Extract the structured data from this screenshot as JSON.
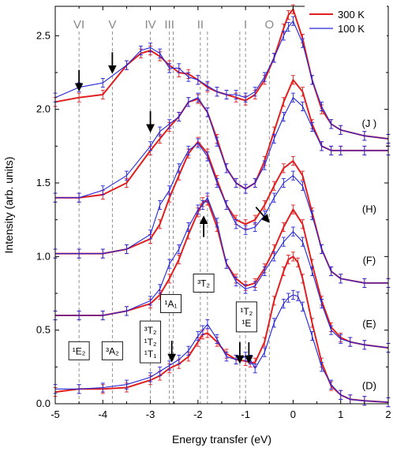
{
  "chart_data": {
    "type": "line",
    "xlabel": "Energy transfer (eV)",
    "ylabel": "Intensity (arb. units)",
    "xlim": [
      -5,
      2
    ],
    "ylim": [
      0,
      2.7
    ],
    "xticks": [
      "-5",
      "-4",
      "-3",
      "-2",
      "-1",
      "0",
      "1",
      "2"
    ],
    "yticks": [
      "0.0",
      "0.5",
      "1.0",
      "1.5",
      "2.0",
      "2.5"
    ],
    "grid": false,
    "legend": {
      "position": "top-right",
      "entries": [
        {
          "label": "300 K",
          "color": "#e02020"
        },
        {
          "label": "100 K",
          "color": "#2424d8"
        }
      ]
    },
    "vlines": [
      {
        "label": "VI",
        "x": -4.5
      },
      {
        "label": "V",
        "x": -3.8
      },
      {
        "label": "IV",
        "x": -3.0
      },
      {
        "label": "III",
        "x": -2.6
      },
      {
        "label": "II",
        "x": -1.95
      },
      {
        "label": "I",
        "x": -1.0
      },
      {
        "label": "O",
        "x": -0.5
      }
    ],
    "extra_vlines_x": [
      -2.52,
      -1.8,
      -1.12
    ],
    "annotations": [
      {
        "text": "(J )",
        "x": 1.6,
        "y": 1.88
      },
      {
        "text": "(H)",
        "x": 1.6,
        "y": 1.3
      },
      {
        "text": "(F)",
        "x": 1.6,
        "y": 0.95
      },
      {
        "text": "(E)",
        "x": 1.6,
        "y": 0.52
      },
      {
        "text": "(D)",
        "x": 1.6,
        "y": 0.1
      }
    ],
    "term_boxes": [
      {
        "lines": [
          "¹E₂"
        ],
        "x": -4.5,
        "y": 0.36
      },
      {
        "lines": [
          "³A₂"
        ],
        "x": -3.8,
        "y": 0.36
      },
      {
        "lines": [
          "³T₂",
          "¹T₂",
          "¹T₁"
        ],
        "x": -3.0,
        "y": 0.42
      },
      {
        "lines": [
          "¹A₁"
        ],
        "x": -2.57,
        "y": 0.68
      },
      {
        "lines": [
          "³T₂"
        ],
        "x": -1.88,
        "y": 0.82
      },
      {
        "lines": [
          "¹T₂",
          "¹E"
        ],
        "x": -0.98,
        "y": 0.59
      }
    ],
    "arrows": [
      {
        "x": -4.5,
        "y": 2.15,
        "direction": "down"
      },
      {
        "x": -3.8,
        "y": 2.27,
        "direction": "down"
      },
      {
        "x": -3.0,
        "y": 1.87,
        "direction": "down"
      },
      {
        "x": -2.55,
        "y": 0.31,
        "direction": "down"
      },
      {
        "x": -1.12,
        "y": 0.3,
        "direction": "down"
      },
      {
        "x": -0.93,
        "y": 0.3,
        "direction": "down"
      },
      {
        "x": -1.88,
        "y": 1.25,
        "direction": "up"
      },
      {
        "x": -0.55,
        "y": 1.25,
        "direction": "down-right"
      }
    ],
    "series": [
      {
        "name": "300 K",
        "group": "(D)",
        "color": "#e02020",
        "x": [
          -5,
          -4.5,
          -4,
          -3.5,
          -3,
          -2.8,
          -2.6,
          -2.4,
          -2.2,
          -2.0,
          -1.9,
          -1.8,
          -1.6,
          -1.4,
          -1.2,
          -1.0,
          -0.9,
          -0.8,
          -0.6,
          -0.4,
          -0.2,
          -0.1,
          0,
          0.1,
          0.2,
          0.4,
          0.6,
          0.8,
          1.0,
          1.2,
          1.5,
          2.0
        ],
        "y": [
          0.08,
          0.1,
          0.1,
          0.11,
          0.16,
          0.19,
          0.24,
          0.27,
          0.32,
          0.42,
          0.47,
          0.48,
          0.42,
          0.34,
          0.3,
          0.29,
          0.28,
          0.28,
          0.42,
          0.7,
          0.9,
          0.98,
          1.0,
          0.96,
          0.85,
          0.55,
          0.28,
          0.12,
          0.06,
          0.03,
          0.02,
          0.01
        ]
      },
      {
        "name": "100 K",
        "group": "(D)",
        "color": "#2424d8",
        "x": [
          -5,
          -4.5,
          -4,
          -3.5,
          -3,
          -2.8,
          -2.6,
          -2.4,
          -2.2,
          -2.0,
          -1.9,
          -1.8,
          -1.6,
          -1.4,
          -1.2,
          -1.0,
          -0.9,
          -0.8,
          -0.6,
          -0.4,
          -0.2,
          -0.1,
          0,
          0.1,
          0.2,
          0.4,
          0.6,
          0.8,
          1.0,
          1.2,
          1.5,
          2.0
        ],
        "y": [
          0.1,
          0.1,
          0.11,
          0.13,
          0.18,
          0.22,
          0.26,
          0.3,
          0.36,
          0.46,
          0.5,
          0.54,
          0.44,
          0.32,
          0.3,
          0.32,
          0.3,
          0.24,
          0.35,
          0.55,
          0.68,
          0.72,
          0.74,
          0.73,
          0.66,
          0.46,
          0.25,
          0.13,
          0.06,
          0.03,
          0.02,
          0.01
        ]
      },
      {
        "name": "300 K",
        "group": "(E)",
        "color": "#e02020",
        "x": [
          -5,
          -4.5,
          -4,
          -3.5,
          -3,
          -2.8,
          -2.6,
          -2.4,
          -2.2,
          -2.0,
          -1.9,
          -1.8,
          -1.6,
          -1.4,
          -1.2,
          -1.0,
          -0.8,
          -0.6,
          -0.4,
          -0.2,
          0,
          0.2,
          0.4,
          0.6,
          0.8,
          1.0,
          1.2,
          1.5,
          2.0
        ],
        "y": [
          0.6,
          0.6,
          0.6,
          0.63,
          0.68,
          0.74,
          0.85,
          0.98,
          1.15,
          1.3,
          1.37,
          1.38,
          1.2,
          0.95,
          0.85,
          0.8,
          0.82,
          0.92,
          1.05,
          1.2,
          1.32,
          1.22,
          0.95,
          0.7,
          0.52,
          0.45,
          0.42,
          0.4,
          0.38
        ]
      },
      {
        "name": "100 K",
        "group": "(E)",
        "color": "#2424d8",
        "x": [
          -5,
          -4.5,
          -4,
          -3.5,
          -3,
          -2.8,
          -2.6,
          -2.4,
          -2.2,
          -2.0,
          -1.9,
          -1.8,
          -1.6,
          -1.4,
          -1.2,
          -1.0,
          -0.8,
          -0.6,
          -0.4,
          -0.2,
          0,
          0.2,
          0.4,
          0.6,
          0.8,
          1.0,
          1.2,
          1.5,
          2.0
        ],
        "y": [
          0.6,
          0.6,
          0.6,
          0.63,
          0.7,
          0.78,
          0.95,
          1.05,
          1.2,
          1.32,
          1.35,
          1.4,
          1.23,
          0.95,
          0.83,
          0.78,
          0.8,
          0.9,
          1.0,
          1.1,
          1.17,
          1.1,
          0.9,
          0.68,
          0.5,
          0.44,
          0.42,
          0.4,
          0.38
        ]
      },
      {
        "name": "300 K",
        "group": "(F)",
        "color": "#e02020",
        "x": [
          -5,
          -4.5,
          -4,
          -3.5,
          -3,
          -2.8,
          -2.6,
          -2.4,
          -2.2,
          -2.0,
          -1.8,
          -1.6,
          -1.4,
          -1.2,
          -1.0,
          -0.8,
          -0.6,
          -0.4,
          -0.2,
          0,
          0.2,
          0.4,
          0.6,
          0.8,
          1.0,
          1.5,
          2.0
        ],
        "y": [
          1.02,
          1.02,
          1.02,
          1.05,
          1.12,
          1.22,
          1.4,
          1.55,
          1.7,
          1.78,
          1.7,
          1.52,
          1.35,
          1.25,
          1.22,
          1.25,
          1.35,
          1.48,
          1.6,
          1.65,
          1.55,
          1.3,
          1.05,
          0.9,
          0.85,
          0.82,
          0.82
        ]
      },
      {
        "name": "100 K",
        "group": "(F)",
        "color": "#2424d8",
        "x": [
          -5,
          -4.5,
          -4,
          -3.5,
          -3,
          -2.8,
          -2.6,
          -2.4,
          -2.2,
          -2.0,
          -1.8,
          -1.6,
          -1.4,
          -1.2,
          -1.0,
          -0.8,
          -0.6,
          -0.4,
          -0.2,
          0,
          0.2,
          0.4,
          0.6,
          0.8,
          1.0,
          1.5,
          2.0
        ],
        "y": [
          1.02,
          1.02,
          1.02,
          1.05,
          1.15,
          1.35,
          1.45,
          1.6,
          1.72,
          1.77,
          1.68,
          1.5,
          1.35,
          1.22,
          1.18,
          1.2,
          1.28,
          1.4,
          1.5,
          1.55,
          1.48,
          1.28,
          1.05,
          0.9,
          0.85,
          0.82,
          0.82
        ]
      },
      {
        "name": "300 K",
        "group": "(H)",
        "color": "#e02020",
        "x": [
          -5,
          -4.5,
          -4,
          -3.5,
          -3,
          -2.8,
          -2.6,
          -2.4,
          -2.2,
          -2.0,
          -1.8,
          -1.6,
          -1.4,
          -1.2,
          -1.0,
          -0.8,
          -0.6,
          -0.4,
          -0.2,
          0,
          0.2,
          0.4,
          0.6,
          0.8,
          1.0,
          1.5,
          2.0
        ],
        "y": [
          1.4,
          1.4,
          1.42,
          1.5,
          1.72,
          1.8,
          1.88,
          1.95,
          2.05,
          2.07,
          1.98,
          1.8,
          1.6,
          1.5,
          1.46,
          1.5,
          1.65,
          1.85,
          2.05,
          2.2,
          2.12,
          1.9,
          1.75,
          1.72,
          1.72,
          1.72,
          1.72
        ]
      },
      {
        "name": "100 K",
        "group": "(H)",
        "color": "#2424d8",
        "x": [
          -5,
          -4.5,
          -4,
          -3.5,
          -3,
          -2.8,
          -2.6,
          -2.4,
          -2.2,
          -2.0,
          -1.8,
          -1.6,
          -1.4,
          -1.2,
          -1.0,
          -0.8,
          -0.6,
          -0.4,
          -0.2,
          0,
          0.2,
          0.4,
          0.6,
          0.8,
          1.0,
          1.5,
          2.0
        ],
        "y": [
          1.4,
          1.4,
          1.45,
          1.55,
          1.75,
          1.85,
          1.9,
          1.95,
          2.05,
          2.08,
          1.98,
          1.78,
          1.6,
          1.5,
          1.46,
          1.5,
          1.62,
          1.8,
          1.95,
          2.08,
          2.02,
          1.88,
          1.75,
          1.72,
          1.72,
          1.72,
          1.72
        ]
      },
      {
        "name": "300 K",
        "group": "(J )",
        "color": "#e02020",
        "x": [
          -5,
          -4.5,
          -4,
          -3.5,
          -3.2,
          -3.0,
          -2.8,
          -2.6,
          -2.4,
          -2.2,
          -2.0,
          -1.8,
          -1.6,
          -1.4,
          -1.2,
          -1.0,
          -0.8,
          -0.6,
          -0.4,
          -0.2,
          -0.1,
          0,
          0.2,
          0.4,
          0.6,
          0.8,
          1.0,
          1.5,
          2.0
        ],
        "y": [
          2.05,
          2.08,
          2.1,
          2.3,
          2.38,
          2.4,
          2.36,
          2.3,
          2.25,
          2.24,
          2.2,
          2.15,
          2.12,
          2.1,
          2.08,
          2.06,
          2.1,
          2.2,
          2.35,
          2.55,
          2.64,
          2.68,
          2.48,
          2.2,
          2.0,
          1.9,
          1.86,
          1.82,
          1.8
        ]
      },
      {
        "name": "100 K",
        "group": "(J )",
        "color": "#2424d8",
        "x": [
          -5,
          -4.5,
          -4,
          -3.5,
          -3.2,
          -3.0,
          -2.8,
          -2.6,
          -2.4,
          -2.2,
          -2.0,
          -1.8,
          -1.6,
          -1.4,
          -1.2,
          -1.0,
          -0.8,
          -0.6,
          -0.4,
          -0.2,
          -0.1,
          0,
          0.2,
          0.4,
          0.6,
          0.8,
          1.0,
          1.5,
          2.0
        ],
        "y": [
          2.08,
          2.15,
          2.18,
          2.3,
          2.4,
          2.42,
          2.38,
          2.28,
          2.28,
          2.22,
          2.2,
          2.16,
          2.12,
          2.1,
          2.1,
          2.08,
          2.12,
          2.22,
          2.35,
          2.5,
          2.56,
          2.6,
          2.45,
          2.2,
          2.02,
          1.9,
          1.86,
          1.82,
          1.8
        ]
      }
    ]
  }
}
